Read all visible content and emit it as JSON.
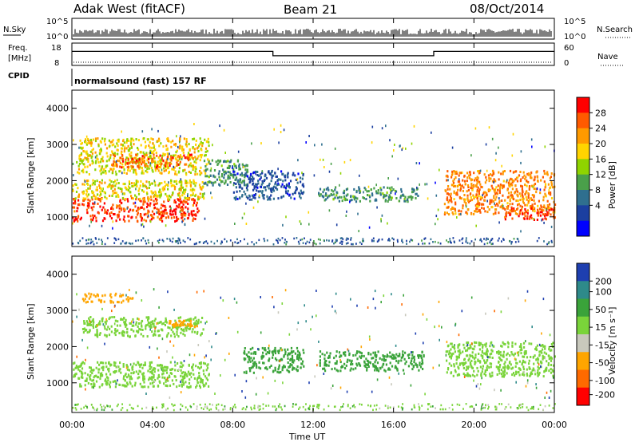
{
  "header": {
    "station": "Adak West (fitACF)",
    "beam": "Beam 21",
    "date": "08/Oct/2014"
  },
  "top_panels": {
    "nsky_label": "N.Sky",
    "nsearch_label": "N.Search",
    "nsky_ticks": [
      "10^5",
      "10^0"
    ],
    "nsky_ticks_right": [
      "10^5",
      "10^0"
    ],
    "freq_label_1": "Freq.",
    "freq_label_2": "[MHz]",
    "freq_ticks": [
      "18",
      "8"
    ],
    "nave_label": "Nave",
    "nave_ticks": [
      "60",
      "0"
    ],
    "cpid_label": "CPID",
    "cpid_text": "normalsound (fast) 157 RF"
  },
  "colorbars": {
    "power": {
      "label": "Power [dB]",
      "ticks": [
        "28",
        "24",
        "20",
        "16",
        "12",
        "8",
        "4"
      ],
      "colors": [
        "#ff0000",
        "#ff5a00",
        "#ff9a00",
        "#ffd400",
        "#8fd400",
        "#4aa04a",
        "#2f6f8f",
        "#1b3fa0",
        "#0000ff"
      ]
    },
    "velocity": {
      "label": "Velocity [m s⁻¹]",
      "ticks": [
        "200",
        "100",
        "50",
        "15",
        "-15",
        "-50",
        "-100",
        "-200"
      ],
      "colors": [
        "#1e3fb0",
        "#2e8a8a",
        "#3aa33a",
        "#7ad43a",
        "#c8c8bc",
        "#ffa500",
        "#ff6a00",
        "#ff0000"
      ]
    }
  },
  "axes": {
    "ylabel": "Slant Range [km]",
    "yticks": [
      "4000",
      "3000",
      "2000",
      "1000"
    ],
    "xticks": [
      "00:00",
      "04:00",
      "08:00",
      "12:00",
      "16:00",
      "20:00",
      "00:00"
    ],
    "xlabel": "Time UT"
  },
  "chart_data": [
    {
      "type": "line",
      "name": "frequency",
      "x_hours": [
        0,
        10,
        10,
        18,
        18,
        24
      ],
      "values": [
        14.5,
        14.5,
        12.2,
        12.2,
        14.5,
        14.5
      ],
      "ylim": [
        8,
        18
      ]
    },
    {
      "type": "heatmap",
      "name": "power",
      "xlim_hours": [
        0,
        24
      ],
      "ylim_km": [
        180,
        4500
      ],
      "regions": [
        {
          "t0": 0.0,
          "t1": 6.3,
          "r0": 900,
          "r1": 1550,
          "level": 28
        },
        {
          "t0": 0.0,
          "t1": 6.6,
          "r0": 1500,
          "r1": 2050,
          "level": 18
        },
        {
          "t0": 0.2,
          "t1": 6.8,
          "r0": 2200,
          "r1": 3200,
          "level": 18
        },
        {
          "t0": 2.0,
          "t1": 6.0,
          "r0": 2400,
          "r1": 2750,
          "level": 26
        },
        {
          "t0": 6.5,
          "t1": 8.7,
          "r0": 1900,
          "r1": 2600,
          "level": 10
        },
        {
          "t0": 8.0,
          "t1": 11.5,
          "r0": 1500,
          "r1": 2300,
          "level": 5
        },
        {
          "t0": 12.2,
          "t1": 17.2,
          "r0": 1450,
          "r1": 1850,
          "level": 10
        },
        {
          "t0": 18.5,
          "t1": 24.0,
          "r0": 1100,
          "r1": 2300,
          "level": 24
        },
        {
          "t0": 21.5,
          "t1": 24.0,
          "r0": 950,
          "r1": 1300,
          "level": 28
        }
      ]
    },
    {
      "type": "heatmap",
      "name": "velocity",
      "xlim_hours": [
        0,
        24
      ],
      "ylim_km": [
        180,
        4500
      ],
      "regions": [
        {
          "t0": 0.0,
          "t1": 6.8,
          "r0": 900,
          "r1": 1600,
          "level": 0
        },
        {
          "t0": 0.5,
          "t1": 6.5,
          "r0": 2300,
          "r1": 2850,
          "level": 0
        },
        {
          "t0": 4.8,
          "t1": 6.2,
          "r0": 2550,
          "r1": 2750,
          "level": -80
        },
        {
          "t0": 0.5,
          "t1": 3.0,
          "r0": 3250,
          "r1": 3500,
          "level": -80
        },
        {
          "t0": 8.5,
          "t1": 11.5,
          "r0": 1300,
          "r1": 2000,
          "level": 40
        },
        {
          "t0": 12.3,
          "t1": 17.5,
          "r0": 1350,
          "r1": 1900,
          "level": 40
        },
        {
          "t0": 18.5,
          "t1": 24.0,
          "r0": 1200,
          "r1": 2150,
          "level": 0
        }
      ]
    }
  ]
}
